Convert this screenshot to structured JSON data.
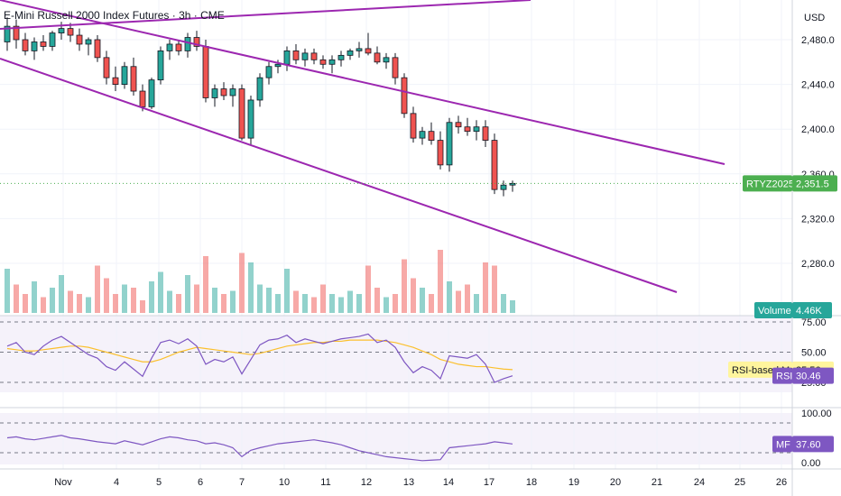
{
  "header": {
    "title": "E-Mini Russell 2000 Index Futures · 3h · CME"
  },
  "price_axis": {
    "currency": "USD",
    "ticks": [
      "2,480.0",
      "2,440.0",
      "2,400.0",
      "2,360.0",
      "2,320.0",
      "2,280.0"
    ]
  },
  "time_axis": {
    "ticks": [
      "Nov",
      "4",
      "5",
      "6",
      "7",
      "10",
      "11",
      "12",
      "13",
      "14",
      "17",
      "18",
      "19",
      "20",
      "21",
      "24",
      "25",
      "26"
    ]
  },
  "labels": {
    "symbol": "RTYZ2025",
    "last_price": "2,351.5",
    "volume_label": "Volume",
    "volume_value": "4.46K",
    "rsi_ma_label": "RSI-based MA",
    "rsi_ma_value": "35.56",
    "rsi_label": "RSI",
    "rsi_value": "30.46",
    "mf_label": "MF",
    "mf_value": "37.60"
  },
  "rsi_axis": {
    "ticks": [
      "75.00",
      "50.00",
      "25.00"
    ]
  },
  "mf_axis": {
    "ticks": [
      "100.00",
      "0.00"
    ]
  },
  "colors": {
    "up": "#26a69a",
    "down": "#ef5350",
    "trend": "#9c27b0",
    "rsi": "#7e57c2",
    "rsi_ma": "#fbc02d",
    "accent": "#4caf50"
  },
  "chart_data": [
    {
      "type": "candlestick",
      "ylim": [
        2250,
        2510
      ],
      "last_price": 2351.5,
      "ohlc": [
        [
          2478,
          2500,
          2470,
          2492
        ],
        [
          2492,
          2498,
          2472,
          2480
        ],
        [
          2480,
          2486,
          2466,
          2470
        ],
        [
          2470,
          2482,
          2462,
          2478
        ],
        [
          2478,
          2484,
          2470,
          2474
        ],
        [
          2474,
          2488,
          2470,
          2486
        ],
        [
          2486,
          2496,
          2480,
          2490
        ],
        [
          2490,
          2495,
          2478,
          2484
        ],
        [
          2484,
          2490,
          2470,
          2476
        ],
        [
          2476,
          2482,
          2466,
          2480
        ],
        [
          2480,
          2484,
          2460,
          2464
        ],
        [
          2464,
          2470,
          2440,
          2446
        ],
        [
          2446,
          2456,
          2434,
          2440
        ],
        [
          2440,
          2460,
          2436,
          2456
        ],
        [
          2456,
          2464,
          2430,
          2434
        ],
        [
          2434,
          2440,
          2416,
          2420
        ],
        [
          2420,
          2446,
          2418,
          2444
        ],
        [
          2444,
          2474,
          2440,
          2470
        ],
        [
          2470,
          2480,
          2462,
          2476
        ],
        [
          2476,
          2480,
          2466,
          2470
        ],
        [
          2470,
          2486,
          2464,
          2482
        ],
        [
          2482,
          2488,
          2470,
          2474
        ],
        [
          2474,
          2480,
          2424,
          2428
        ],
        [
          2428,
          2440,
          2420,
          2436
        ],
        [
          2436,
          2442,
          2426,
          2430
        ],
        [
          2430,
          2440,
          2420,
          2436
        ],
        [
          2436,
          2440,
          2390,
          2392
        ],
        [
          2392,
          2430,
          2386,
          2426
        ],
        [
          2426,
          2450,
          2420,
          2446
        ],
        [
          2446,
          2460,
          2440,
          2456
        ],
        [
          2456,
          2462,
          2450,
          2458
        ],
        [
          2458,
          2474,
          2452,
          2470
        ],
        [
          2470,
          2476,
          2458,
          2462
        ],
        [
          2462,
          2472,
          2456,
          2468
        ],
        [
          2468,
          2472,
          2458,
          2462
        ],
        [
          2462,
          2466,
          2454,
          2458
        ],
        [
          2458,
          2466,
          2450,
          2462
        ],
        [
          2462,
          2470,
          2456,
          2466
        ],
        [
          2466,
          2472,
          2462,
          2470
        ],
        [
          2470,
          2478,
          2464,
          2472
        ],
        [
          2472,
          2486,
          2466,
          2468
        ],
        [
          2468,
          2474,
          2458,
          2460
        ],
        [
          2460,
          2468,
          2454,
          2464
        ],
        [
          2464,
          2468,
          2440,
          2446
        ],
        [
          2446,
          2450,
          2410,
          2414
        ],
        [
          2414,
          2420,
          2388,
          2392
        ],
        [
          2392,
          2402,
          2386,
          2398
        ],
        [
          2398,
          2406,
          2386,
          2390
        ],
        [
          2390,
          2398,
          2364,
          2368
        ],
        [
          2368,
          2410,
          2362,
          2406
        ],
        [
          2406,
          2412,
          2396,
          2402
        ],
        [
          2402,
          2410,
          2394,
          2398
        ],
        [
          2398,
          2408,
          2390,
          2402
        ],
        [
          2402,
          2408,
          2384,
          2390
        ],
        [
          2390,
          2396,
          2342,
          2346
        ],
        [
          2346,
          2354,
          2340,
          2350
        ],
        [
          2350,
          2354,
          2344,
          2351.5
        ]
      ],
      "volume": [
        14,
        9,
        6,
        10,
        5,
        8,
        12,
        7,
        6,
        5,
        15,
        11,
        6,
        9,
        8,
        4,
        10,
        13,
        7,
        6,
        12,
        9,
        18,
        8,
        6,
        7,
        19,
        16,
        9,
        8,
        6,
        14,
        7,
        6,
        5,
        9,
        6,
        5,
        7,
        6,
        15,
        8,
        5,
        6,
        17,
        11,
        8,
        6,
        20,
        10,
        7,
        9,
        6,
        16,
        15,
        6,
        4
      ]
    },
    {
      "type": "line",
      "title": "RSI",
      "ylim": [
        0,
        100
      ],
      "series": [
        {
          "name": "RSI",
          "values": [
            55,
            58,
            50,
            48,
            55,
            60,
            63,
            58,
            53,
            48,
            45,
            38,
            35,
            42,
            36,
            30,
            45,
            58,
            60,
            57,
            61,
            55,
            40,
            44,
            42,
            46,
            32,
            44,
            56,
            60,
            61,
            64,
            58,
            61,
            59,
            57,
            59,
            61,
            62,
            63,
            65,
            58,
            60,
            54,
            42,
            33,
            38,
            35,
            28,
            47,
            46,
            45,
            48,
            40,
            25,
            28,
            30.46
          ]
        },
        {
          "name": "RSI-based MA",
          "values": [
            53,
            52,
            51,
            51,
            52,
            53,
            54,
            55,
            55,
            54,
            52,
            50,
            48,
            46,
            44,
            42,
            42,
            44,
            47,
            50,
            52,
            54,
            53,
            52,
            51,
            50,
            49,
            48,
            49,
            51,
            53,
            55,
            56,
            57,
            58,
            58,
            59,
            59,
            60,
            60,
            60,
            60,
            59,
            58,
            56,
            54,
            51,
            48,
            44,
            42,
            40,
            39,
            38,
            38,
            37,
            36,
            35.56
          ]
        }
      ]
    },
    {
      "type": "line",
      "title": "MF",
      "ylim": [
        0,
        100
      ],
      "series": [
        {
          "name": "MF",
          "values": [
            50,
            52,
            48,
            46,
            49,
            52,
            55,
            50,
            48,
            45,
            42,
            40,
            38,
            44,
            40,
            36,
            42,
            48,
            52,
            50,
            46,
            44,
            38,
            40,
            36,
            30,
            12,
            25,
            30,
            34,
            38,
            40,
            42,
            44,
            46,
            43,
            40,
            36,
            30,
            24,
            20,
            16,
            12,
            10,
            8,
            6,
            4,
            5,
            6,
            30,
            32,
            34,
            36,
            38,
            42,
            40,
            37.6
          ]
        }
      ]
    }
  ]
}
